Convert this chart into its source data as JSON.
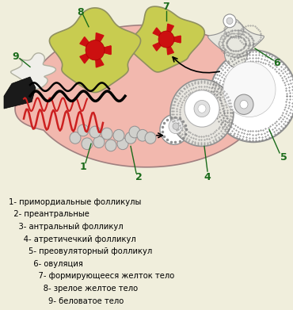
{
  "bg_color": "#f0eedc",
  "ovary_fill": "#f2b8b0",
  "number_color": "#1a6b1a",
  "legend_color": "#000000",
  "legend_fontsize": 7.2,
  "number_fontsize": 9,
  "fig_width": 3.7,
  "fig_height": 3.91,
  "dpi": 100,
  "legend_lines": [
    "1- примордиальные фолликулы",
    "  2- преантральные",
    "    3- антральный фолликул",
    "      4- атретичечкий фолликул",
    "        5- преовуляторный фолликул",
    "          6- овуляция",
    "            7- формирующееся желток тело",
    "              8- зрелое желтое тело",
    "                9- беловатое тело"
  ]
}
